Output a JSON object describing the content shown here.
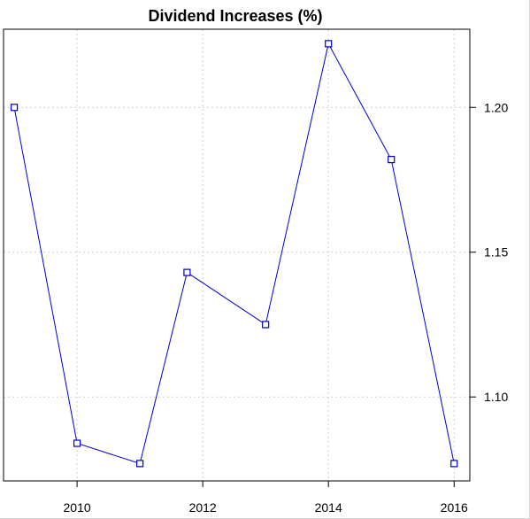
{
  "chart_data": {
    "type": "line",
    "title": "Dividend Increases (%)",
    "xlabel": "",
    "ylabel": "",
    "x": [
      2009,
      2010,
      2011,
      2011.75,
      2013,
      2014,
      2015,
      2016
    ],
    "series": [
      {
        "values": [
          1.2,
          1.084,
          1.077,
          1.143,
          1.125,
          1.222,
          1.182,
          1.077
        ],
        "color": "#0000cc",
        "marker": "square"
      }
    ],
    "xlim": [
      2008.83,
      2016.25
    ],
    "ylim": [
      1.071,
      1.227
    ],
    "x_ticks": [
      2010,
      2012,
      2014,
      2016
    ],
    "x_tick_labels": [
      "2010",
      "2012",
      "2014",
      "2016"
    ],
    "y_ticks": [
      1.1,
      1.15,
      1.2
    ],
    "y_tick_labels": [
      "1.10",
      "1.15",
      "1.20"
    ],
    "y_axis_side": "right",
    "grid": true,
    "grid_style": "dotted",
    "legend": false
  }
}
